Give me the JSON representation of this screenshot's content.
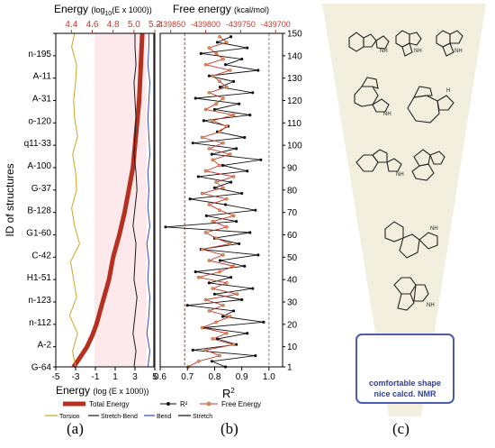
{
  "panel_labels": {
    "a": "(a)",
    "b": "(b)",
    "c": "(c)"
  },
  "panel_a": {
    "top_title": "Energy",
    "top_title_unit": "(log",
    "top_title_sub": "10",
    "top_title_rest": "(E x 1000))",
    "bottom_title": "Energy",
    "bottom_title_unit": "(log (E x 1000))",
    "y_title": "ID of structures",
    "legend": {
      "total": "Total Energy",
      "torsion": "Torsion",
      "stretch_bend": "Stretch-Bend",
      "bend": "Bend",
      "stretch": "Stretch"
    },
    "colors": {
      "total": "#b5301e",
      "torsion": "#d2a324",
      "stretch_bend": "#1a1a1a",
      "bend": "#2f4fb8",
      "stretch": "#111111",
      "top_axis": "#c0392b",
      "pink_band": "#fde8ec"
    }
  },
  "panel_b": {
    "top_title": "Free energy",
    "top_title_unit": "(kcal/mol)",
    "bottom_title": "R",
    "bottom_title_sup": "2",
    "legend": {
      "r2": "R²",
      "free": "Free Energy"
    },
    "colors": {
      "r2": "#111111",
      "free": "#c0392b",
      "top_axis": "#c0392b"
    }
  },
  "panel_c": {
    "caption_line1": "comfortable shape",
    "caption_line2": "nice calcd. NMR",
    "colors": {
      "funnel": "#f2efdf",
      "box": "#4a5db0",
      "caption": "#2c3fa8",
      "struct": "#222222",
      "struct_highlight": "#2c3fa8"
    }
  },
  "chart_data": [
    {
      "type": "line",
      "panel": "a",
      "ylabel": "ID of structures",
      "xlabel": "Energy (log (E x 1000))",
      "x2label": "Energy (log10 (E x 1000))",
      "ylim": [
        1,
        150
      ],
      "xlim": [
        -5,
        5
      ],
      "x_ticks": [
        -5,
        -3,
        -1,
        1,
        3,
        5
      ],
      "x_tick_labels": [
        "-5",
        "-3",
        "-1",
        "1",
        "3",
        "5"
      ],
      "x2lim": [
        4.25,
        5.2
      ],
      "x2_ticks": [
        4.4,
        4.6,
        4.8,
        5.0,
        5.2
      ],
      "x2_tick_labels": [
        "4.4",
        "4.6",
        "4.8",
        "5.0",
        "5.2"
      ],
      "y_ticks": [
        1,
        10,
        20,
        30,
        40,
        50,
        60,
        70,
        80,
        90,
        100,
        110,
        120,
        130,
        140,
        150
      ],
      "y_tick_labels": [
        "G-64",
        "A-2",
        "n-112",
        "n-123",
        "H1-51",
        "C-42",
        "G1-60",
        "B-128",
        "G-37",
        "A-100",
        "q11-33",
        "o-120",
        "A-31",
        "A-11",
        "n-195"
      ],
      "y_tick_label_positions": [
        1,
        11,
        21,
        31,
        41,
        51,
        61,
        71,
        81,
        91,
        101,
        111,
        121,
        131,
        141
      ],
      "series": [
        {
          "name": "Total Energy",
          "axis": "top",
          "x": [
            4.42,
            4.48,
            4.55,
            4.6,
            4.64,
            4.67,
            4.7,
            4.73,
            4.76,
            4.8,
            4.86,
            4.91,
            4.95,
            4.99,
            5.01,
            5.03,
            5.05,
            5.065,
            5.08
          ],
          "y": [
            1,
            5,
            10,
            15,
            20,
            25,
            30,
            35,
            40,
            50,
            60,
            70,
            80,
            90,
            100,
            110,
            120,
            135,
            150
          ]
        },
        {
          "name": "Torsion",
          "x": [
            -3.0,
            -3.3,
            -2.8,
            -3.6,
            -2.9,
            -3.2,
            -3.5,
            -2.6,
            -3.1,
            -3.4,
            -2.9,
            -3.0,
            -3.3,
            -2.8,
            -3.1,
            -3.2,
            -3.0,
            -2.9,
            -3.4,
            -3.1
          ],
          "y": [
            1,
            8,
            16,
            24,
            32,
            40,
            48,
            56,
            64,
            72,
            80,
            88,
            96,
            104,
            112,
            120,
            128,
            136,
            144,
            150
          ]
        },
        {
          "name": "Stretch-Bend",
          "x": [
            2.9,
            3.1,
            2.8,
            3.0,
            3.2,
            2.9,
            3.0,
            3.1,
            2.8,
            3.0,
            3.2,
            3.1,
            2.9,
            3.0,
            3.1,
            3.0,
            2.9,
            3.1,
            3.0,
            3.0
          ],
          "y": [
            1,
            8,
            16,
            24,
            32,
            40,
            48,
            56,
            64,
            72,
            80,
            88,
            96,
            104,
            112,
            120,
            128,
            136,
            144,
            150
          ]
        },
        {
          "name": "Bend",
          "x": [
            4.3,
            4.5,
            4.2,
            4.4,
            4.5,
            4.3,
            4.4,
            4.2,
            4.5,
            4.3,
            4.4,
            4.3,
            4.5,
            4.4,
            4.3,
            4.4,
            4.5,
            4.3,
            4.4,
            4.4
          ],
          "y": [
            1,
            8,
            16,
            24,
            32,
            40,
            48,
            56,
            64,
            72,
            80,
            88,
            96,
            104,
            112,
            120,
            128,
            136,
            144,
            150
          ]
        },
        {
          "name": "Stretch",
          "x": [
            4.9,
            4.9,
            4.9,
            4.9,
            4.9,
            4.9,
            4.9,
            4.9,
            4.9,
            4.9
          ],
          "y": [
            1,
            17,
            34,
            50,
            67,
            84,
            100,
            117,
            134,
            150
          ]
        }
      ],
      "legend_position": "bottom"
    },
    {
      "type": "line",
      "panel": "b",
      "xlabel": "R²",
      "x2label": "Free energy (kcal/mol)",
      "ylim": [
        1,
        150
      ],
      "xlim": [
        0.6,
        1.05
      ],
      "x_ticks": [
        0.6,
        0.7,
        0.8,
        0.9,
        1.0
      ],
      "x_tick_labels": [
        "0.6",
        "0.7",
        "0.8",
        "0.9",
        "1.0"
      ],
      "x2lim": [
        -439865,
        -439690
      ],
      "x2_ticks": [
        -439850,
        -439800,
        -439750,
        -439700
      ],
      "x2_tick_labels": [
        "-439850",
        "-439800",
        "-439750",
        "-439700"
      ],
      "y_ticks": [
        1,
        10,
        20,
        30,
        40,
        50,
        60,
        70,
        80,
        90,
        100,
        110,
        120,
        130,
        140,
        150
      ],
      "y_tick_labels": [
        "1",
        "10",
        "20",
        "30",
        "40",
        "50",
        "60",
        "70",
        "80",
        "90",
        "100",
        "110",
        "120",
        "130",
        "140",
        "150"
      ],
      "reference_lines": {
        "free_energy_dashed_red": -439830,
        "r2_dashed_gray": 1.0
      },
      "series": [
        {
          "name": "R²",
          "x": [
            0.84,
            0.79,
            0.95,
            0.72,
            0.88,
            0.81,
            0.92,
            0.76,
            0.98,
            0.83,
            0.87,
            0.7,
            0.9,
            0.8,
            0.94,
            0.78,
            0.86,
            0.73,
            0.91,
            0.82,
            0.96,
            0.75,
            0.89,
            0.8,
            0.93,
            0.62,
            0.88,
            0.77,
            0.95,
            0.84,
            0.71,
            0.9,
            0.8,
            0.86,
            0.74,
            0.92,
            0.83,
            0.97,
            0.79,
            0.88,
            0.72,
            0.91,
            0.81,
            0.85,
            0.76,
            0.93,
            0.8,
            0.89,
            0.73,
            0.94,
            0.82,
            0.87,
            0.78,
            0.96,
            0.84,
            0.9,
            0.75,
            0.92,
            0.81,
            0.86
          ],
          "y": [
            1,
            3.5,
            6,
            8.5,
            11,
            13.5,
            16,
            18.5,
            21,
            23.5,
            26,
            28.5,
            31,
            33.5,
            36,
            38.5,
            41,
            43.5,
            46,
            48.5,
            51,
            53.5,
            56,
            58.5,
            61,
            63.5,
            66,
            68.5,
            71,
            73.5,
            76,
            78.5,
            81,
            83.5,
            86,
            88.5,
            91,
            93.5,
            96,
            98.5,
            101,
            103.5,
            106,
            108.5,
            111,
            113.5,
            116,
            118.5,
            121,
            123.5,
            126,
            128.5,
            131,
            133.5,
            136,
            138.5,
            141,
            143.5,
            146,
            148.5
          ]
        },
        {
          "name": "Free Energy",
          "x": [
            -439825,
            -439810,
            -439780,
            -439800,
            -439760,
            -439790,
            -439770,
            -439805,
            -439785,
            -439765,
            -439795,
            -439775,
            -439800,
            -439755,
            -439790,
            -439770,
            -439810,
            -439780,
            -439760,
            -439795,
            -439775,
            -439805,
            -439765,
            -439785,
            -439800,
            -439770,
            -439790,
            -439760,
            -439780,
            -439795,
            -439770,
            -439805,
            -439775,
            -439785,
            -439760,
            -439800,
            -439780,
            -439790,
            -439765,
            -439795,
            -439775,
            -439805,
            -439780,
            -439770,
            -439790,
            -439760,
            -439800,
            -439785,
            -439775,
            -439795,
            -439770,
            -439780,
            -439790,
            -439765,
            -439800,
            -439775,
            -439785,
            -439795,
            -439770,
            -439780
          ],
          "y": [
            1,
            3.5,
            6,
            8.5,
            11,
            13.5,
            16,
            18.5,
            21,
            23.5,
            26,
            28.5,
            31,
            33.5,
            36,
            38.5,
            41,
            43.5,
            46,
            48.5,
            51,
            53.5,
            56,
            58.5,
            61,
            63.5,
            66,
            68.5,
            71,
            73.5,
            76,
            78.5,
            81,
            83.5,
            86,
            88.5,
            91,
            93.5,
            96,
            98.5,
            101,
            103.5,
            106,
            108.5,
            111,
            113.5,
            116,
            118.5,
            121,
            123.5,
            126,
            128.5,
            131,
            133.5,
            136,
            138.5,
            141,
            143.5,
            146,
            148.5
          ]
        }
      ],
      "legend_position": "bottom"
    }
  ]
}
